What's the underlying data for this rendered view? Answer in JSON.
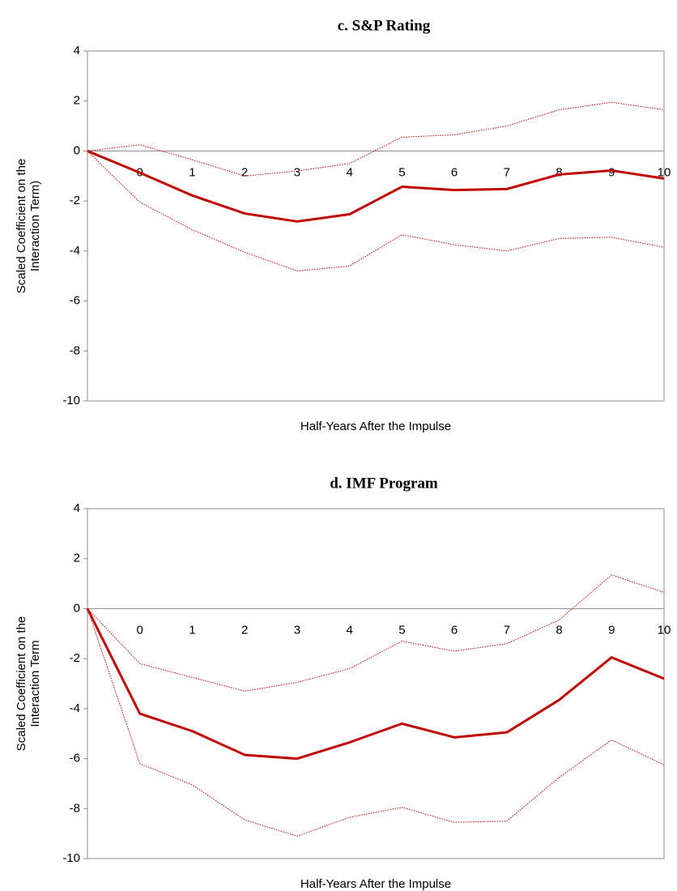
{
  "chart_data": [
    {
      "type": "line",
      "title": "c. S&P Rating",
      "xlabel": "Half-Years After the Impulse",
      "ylabel": [
        "Scaled Coefficient on the",
        "Interaction Term)"
      ],
      "categories": [
        null,
        "0",
        "1",
        "2",
        "3",
        "4",
        "5",
        "6",
        "7",
        "8",
        "9",
        "10"
      ],
      "ylim": [
        -10,
        4
      ],
      "yticks": [
        -10,
        -8,
        -6,
        -4,
        -2,
        0,
        2,
        4
      ],
      "series": [
        {
          "color": "#c00000",
          "style": "solid",
          "values": [
            0,
            -0.87,
            -1.78,
            -2.5,
            -2.82,
            -2.53,
            -1.43,
            -1.56,
            -1.52,
            -0.94,
            -0.78,
            -1.1
          ]
        },
        {
          "color": "#c00000",
          "style": "dotted",
          "values": [
            0,
            0.25,
            -0.35,
            -1.0,
            -0.8,
            -0.5,
            0.55,
            0.65,
            1.0,
            1.65,
            1.95,
            1.65
          ]
        },
        {
          "color": "#c00000",
          "style": "dotted",
          "values": [
            0,
            -2.05,
            -3.15,
            -4.05,
            -4.8,
            -4.6,
            -3.35,
            -3.75,
            -4.0,
            -3.5,
            -3.45,
            -3.85
          ]
        }
      ]
    },
    {
      "type": "line",
      "title": "d.  IMF Program",
      "xlabel": "Half-Years After the Impulse",
      "ylabel": [
        "Scaled Coefficient on the",
        "Interaction Term"
      ],
      "categories": [
        null,
        "0",
        "1",
        "2",
        "3",
        "4",
        "5",
        "6",
        "7",
        "8",
        "9",
        "10"
      ],
      "ylim": [
        -10,
        4
      ],
      "yticks": [
        -10,
        -8,
        -6,
        -4,
        -2,
        0,
        2,
        4
      ],
      "series": [
        {
          "color": "#c00000",
          "style": "solid",
          "values": [
            0,
            -4.2,
            -4.9,
            -5.85,
            -6.0,
            -5.35,
            -4.6,
            -5.15,
            -4.95,
            -3.65,
            -1.95,
            -2.8
          ]
        },
        {
          "color": "#c00000",
          "style": "dotted",
          "values": [
            0,
            -2.2,
            -2.75,
            -3.3,
            -2.95,
            -2.4,
            -1.3,
            -1.7,
            -1.4,
            -0.45,
            1.35,
            0.65
          ]
        },
        {
          "color": "#c00000",
          "style": "dotted",
          "values": [
            0,
            -6.2,
            -7.05,
            -8.45,
            -9.1,
            -8.35,
            -7.95,
            -8.55,
            -8.5,
            -6.75,
            -5.25,
            -6.25
          ]
        }
      ]
    }
  ]
}
